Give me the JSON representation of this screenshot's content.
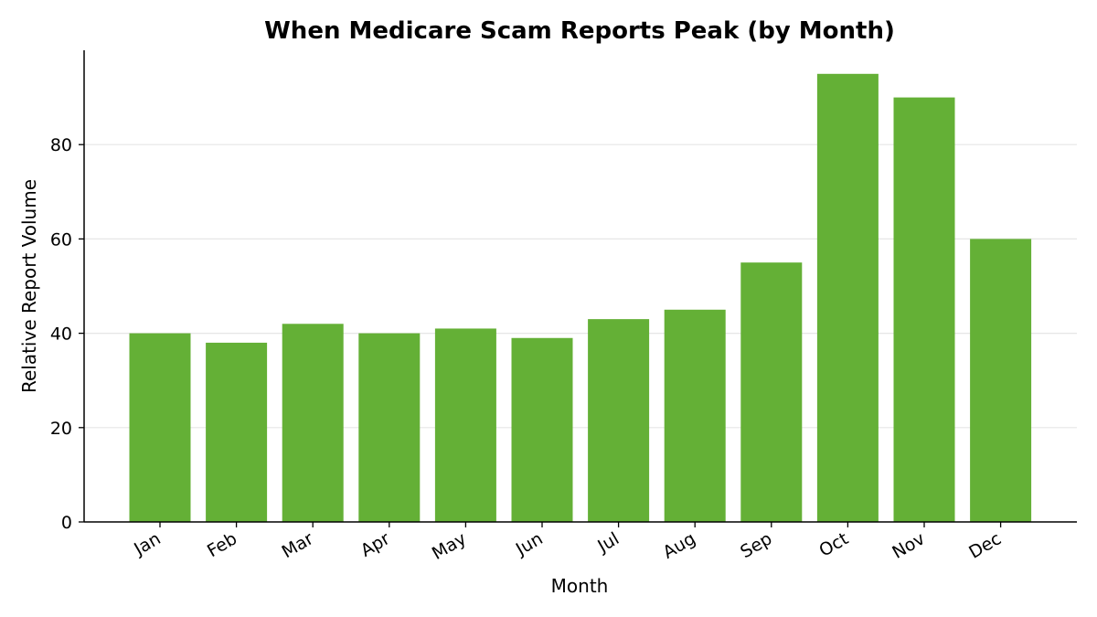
{
  "chart_data": {
    "type": "bar",
    "title": "When Medicare Scam Reports Peak (by Month)",
    "xlabel": "Month",
    "ylabel": "Relative Report Volume",
    "categories": [
      "Jan",
      "Feb",
      "Mar",
      "Apr",
      "May",
      "Jun",
      "Jul",
      "Aug",
      "Sep",
      "Oct",
      "Nov",
      "Dec"
    ],
    "values": [
      40,
      38,
      42,
      40,
      41,
      39,
      43,
      45,
      55,
      95,
      90,
      60
    ],
    "ylim": [
      0,
      100
    ],
    "yticks": [
      0,
      20,
      40,
      60,
      80
    ],
    "grid": "horizontal",
    "legend": "none",
    "colors": {
      "bar": "#64b036",
      "axis": "#000000",
      "grid": "#e6e6e6"
    }
  }
}
